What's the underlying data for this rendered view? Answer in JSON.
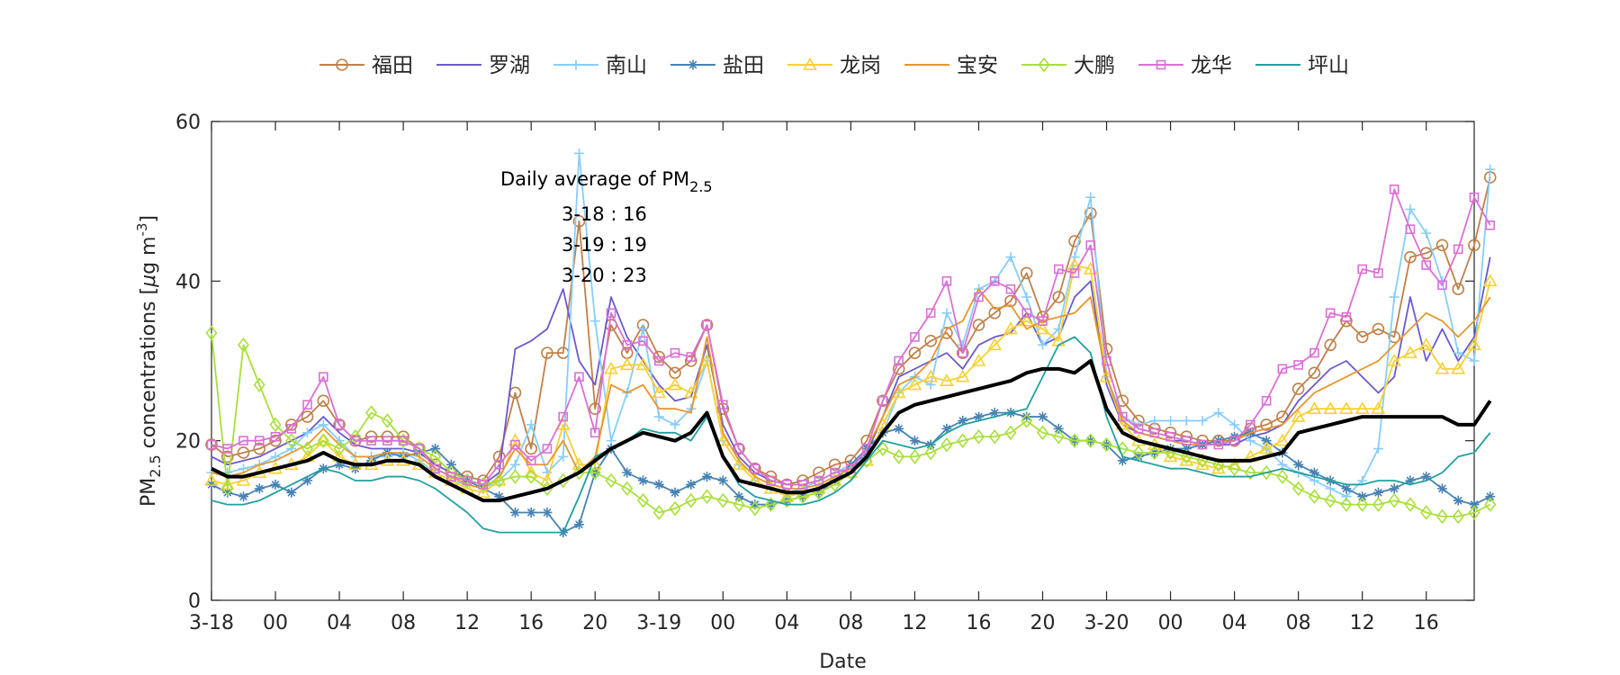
{
  "chart_data": {
    "type": "line",
    "title": "",
    "xlabel": "Date",
    "ylabel": "PM",
    "ylabel_sub": "2.5",
    "ylabel_tail": " concentrations [",
    "ylabel_mu": "μ",
    "ylabel_unit": "g m",
    "ylabel_sup": "-3",
    "ylabel_close": "]",
    "ylim": [
      0,
      60
    ],
    "yticks": [
      0,
      20,
      40,
      60
    ],
    "xlim": [
      0,
      79
    ],
    "xticks": [
      {
        "h": 0,
        "label": "3-18"
      },
      {
        "h": 4,
        "label": "00"
      },
      {
        "h": 8,
        "label": "04"
      },
      {
        "h": 12,
        "label": "08"
      },
      {
        "h": 16,
        "label": "12"
      },
      {
        "h": 20,
        "label": "16"
      },
      {
        "h": 24,
        "label": "20"
      },
      {
        "h": 28,
        "label": "3-19"
      },
      {
        "h": 32,
        "label": "00"
      },
      {
        "h": 36,
        "label": "04"
      },
      {
        "h": 40,
        "label": "08"
      },
      {
        "h": 44,
        "label": "12"
      },
      {
        "h": 48,
        "label": "16"
      },
      {
        "h": 52,
        "label": "20"
      },
      {
        "h": 56,
        "label": "3-20"
      },
      {
        "h": 60,
        "label": "00"
      },
      {
        "h": 64,
        "label": "04"
      },
      {
        "h": 68,
        "label": "08"
      },
      {
        "h": 72,
        "label": "12"
      },
      {
        "h": 76,
        "label": "16"
      }
    ],
    "legend_position": "top",
    "annotation": {
      "title": "Daily average of PM",
      "title_sub": "2.5",
      "lines": [
        "3-18 : 16",
        "3-19 : 19",
        "3-20 : 23"
      ]
    },
    "series": [
      {
        "name": "福田",
        "color": "#C0804A",
        "marker": "circle",
        "values": [
          19.5,
          18,
          18.5,
          19,
          20,
          22,
          23,
          25,
          22,
          20,
          20.5,
          20.5,
          20.5,
          19,
          17,
          16,
          15.5,
          15,
          18,
          26,
          19,
          31,
          31,
          47.5,
          24,
          34.5,
          31,
          34.5,
          30.5,
          28.5,
          30,
          34.5,
          24,
          19,
          16.5,
          15.5,
          14.5,
          15,
          16,
          17,
          17.5,
          20,
          25,
          29,
          31,
          32.5,
          33.5,
          31,
          34.5,
          36,
          37.5,
          41,
          35.5,
          38,
          45,
          48.5,
          31.5,
          25,
          22.5,
          21.5,
          21,
          20.5,
          20,
          20,
          20,
          21.5,
          22,
          23,
          26.5,
          28.5,
          32,
          35,
          33,
          34,
          33,
          43,
          43.5,
          44.5,
          39,
          44.5,
          53
        ]
      },
      {
        "name": "罗湖",
        "color": "#6A5ACD",
        "marker": "none",
        "values": [
          18,
          17,
          17.5,
          18,
          19,
          20,
          21,
          23,
          21,
          19.5,
          19,
          19,
          19,
          18.5,
          17,
          16,
          15,
          14.5,
          16,
          31.5,
          32.5,
          34,
          39,
          30,
          27,
          38,
          33,
          30,
          27,
          25,
          25.5,
          32,
          22,
          18,
          16,
          15,
          14.5,
          14.5,
          15,
          16,
          16.5,
          18.5,
          23,
          28,
          29,
          30,
          31,
          29,
          32,
          33,
          33.5,
          36,
          32,
          33,
          38,
          40,
          27,
          22,
          21,
          20.5,
          20,
          20,
          19.5,
          19.5,
          19.5,
          20.5,
          21,
          22,
          25,
          27,
          29,
          30,
          28,
          26,
          28,
          38,
          30,
          34,
          30,
          33,
          43
        ]
      },
      {
        "name": "南山",
        "color": "#87CEFA",
        "marker": "plus",
        "values": [
          16,
          16,
          16.5,
          17,
          18,
          19,
          21,
          22,
          20,
          18,
          18,
          18,
          18.5,
          17.5,
          16,
          15,
          14.5,
          14,
          15,
          17,
          22,
          16,
          18,
          56,
          35,
          20,
          26,
          34,
          23,
          22,
          24,
          30,
          20,
          17,
          15,
          14,
          13.5,
          14,
          15,
          16,
          17,
          18,
          21,
          26,
          28,
          27,
          36,
          32,
          39,
          40,
          43,
          38,
          32,
          34,
          43,
          50.5,
          28,
          23,
          22,
          22.5,
          22.5,
          22.5,
          22.5,
          23.5,
          22,
          20,
          19,
          17,
          16,
          15,
          14,
          13,
          15,
          19,
          38,
          49,
          46,
          40,
          31,
          30,
          54
        ]
      },
      {
        "name": "盐田",
        "color": "#4682B4",
        "marker": "star",
        "values": [
          14.5,
          13.5,
          13,
          14,
          14.5,
          13.5,
          15,
          16.5,
          17,
          16.5,
          17.5,
          18.5,
          18,
          18.5,
          19,
          17,
          15,
          14,
          13,
          11,
          11,
          11,
          8.5,
          9.5,
          16,
          19,
          16,
          15,
          14.5,
          13.5,
          14.5,
          15.5,
          15,
          13,
          12,
          12,
          12.5,
          13,
          13.5,
          15,
          17,
          19,
          21,
          21.5,
          20,
          19.5,
          21.5,
          22.5,
          23,
          23.5,
          23.5,
          23,
          23,
          21.5,
          20,
          20,
          19.5,
          17.5,
          18,
          18.5,
          19,
          19,
          19.5,
          20,
          20.5,
          21,
          20,
          18.5,
          17,
          16,
          15,
          14,
          13,
          13.5,
          14,
          15,
          15.5,
          14,
          12.5,
          12,
          13
        ]
      },
      {
        "name": "龙岗",
        "color": "#F8D030",
        "marker": "triangle",
        "values": [
          15,
          14.5,
          15,
          16,
          16.5,
          17,
          18,
          20,
          18,
          17,
          17,
          17.5,
          17.5,
          17,
          16,
          15,
          14,
          13.5,
          15,
          20,
          16,
          15,
          22,
          17,
          17,
          29,
          29.5,
          29.5,
          26,
          27,
          26,
          30,
          20,
          17,
          15,
          14,
          13,
          13.5,
          14,
          15,
          16,
          17.5,
          22,
          26,
          27,
          28,
          27.5,
          28,
          30,
          32,
          34,
          35,
          34,
          32.5,
          42,
          41.5,
          28,
          22,
          20,
          19.5,
          18,
          17.5,
          17,
          16.5,
          17,
          18,
          19,
          20,
          23,
          24,
          24,
          24,
          24,
          24,
          30,
          31,
          32,
          29,
          29,
          32,
          40
        ]
      },
      {
        "name": "宝安",
        "color": "#E8962E",
        "marker": "none",
        "values": [
          16,
          15.5,
          16,
          17,
          17.5,
          18.5,
          19.5,
          21.5,
          19.5,
          18,
          18,
          18.5,
          18.5,
          18,
          16.5,
          15.5,
          14.5,
          14,
          15.5,
          19,
          17,
          17,
          20,
          16,
          18,
          27,
          26,
          27,
          24,
          24,
          23.5,
          33,
          21,
          17.5,
          15.5,
          14.5,
          14,
          14,
          14.5,
          15.5,
          16.5,
          19,
          23,
          27,
          28,
          30,
          34,
          35,
          39,
          36.5,
          37,
          34,
          35,
          35.5,
          36,
          38,
          28,
          22.5,
          21,
          20.5,
          20,
          19.5,
          19.5,
          19.5,
          20,
          21,
          21.5,
          22,
          24,
          26,
          27,
          28,
          29,
          30,
          32,
          34,
          36,
          35,
          33,
          35,
          38
        ]
      },
      {
        "name": "大鹏",
        "color": "#A8E03A",
        "marker": "diamond",
        "values": [
          33.5,
          14,
          32,
          27,
          22,
          20,
          19,
          20,
          19,
          20.5,
          23.5,
          22.5,
          20,
          19,
          18,
          16,
          15,
          14.5,
          15,
          15.5,
          15.5,
          14,
          15,
          16,
          16,
          15,
          14,
          12.5,
          11,
          11.5,
          12.5,
          13,
          12.5,
          12,
          11.5,
          12,
          12.5,
          13,
          13.5,
          14.5,
          16,
          17.5,
          19,
          18,
          18,
          18.5,
          19.5,
          20,
          20.5,
          20.5,
          21,
          22.5,
          21,
          20.5,
          20,
          20,
          19.5,
          19,
          18.5,
          18.5,
          18.5,
          18,
          17.5,
          17,
          16.5,
          16,
          16,
          15.5,
          14,
          13,
          12.5,
          12,
          12,
          12,
          12.5,
          12,
          11,
          10.5,
          10.5,
          11,
          12
        ]
      },
      {
        "name": "龙华",
        "color": "#DA70D6",
        "marker": "square",
        "values": [
          19.5,
          19,
          20,
          20,
          20.5,
          21.5,
          24.5,
          28,
          22,
          20,
          20,
          20,
          20,
          19,
          16.5,
          15.5,
          15,
          14.5,
          17,
          19.5,
          17.5,
          19,
          23,
          28,
          21,
          36,
          32,
          32.5,
          30,
          31,
          30.5,
          34.5,
          24.5,
          19,
          16.5,
          15,
          14.5,
          14.5,
          15,
          16,
          16.5,
          19,
          25,
          30,
          33,
          36,
          40,
          31,
          38,
          40,
          39,
          36,
          35,
          41.5,
          41,
          44.5,
          30,
          23,
          21.5,
          21,
          20.5,
          20,
          19.5,
          19.5,
          20,
          22,
          25,
          29,
          29.5,
          31,
          36,
          35.5,
          41.5,
          41,
          51.5,
          46.5,
          42,
          39.5,
          44,
          50.5,
          47
        ]
      },
      {
        "name": "坪山",
        "color": "#20A0A0",
        "marker": "none",
        "values": [
          12.5,
          12,
          12,
          12.5,
          13.5,
          14.5,
          15.5,
          16.5,
          16,
          15,
          15,
          15.5,
          15.5,
          15,
          14,
          12.5,
          11,
          9,
          8.5,
          8.5,
          8.5,
          8.5,
          8.5,
          13,
          18,
          19,
          20,
          21.5,
          21,
          21,
          20,
          23,
          18,
          14.5,
          13,
          12.5,
          12,
          12,
          12.5,
          13.5,
          15,
          17.5,
          20,
          19.5,
          19,
          19.5,
          21,
          22,
          22.5,
          23,
          23.5,
          24,
          28,
          32,
          33,
          31,
          23,
          18,
          17.5,
          17,
          16.5,
          16.5,
          16,
          15.5,
          15.5,
          15.5,
          16,
          16.5,
          16,
          15.5,
          15,
          14.5,
          14.5,
          15,
          15,
          14.5,
          15,
          16,
          18,
          18.5,
          21
        ]
      },
      {
        "name": "",
        "color": "#000000",
        "marker": "none",
        "thick": true,
        "values": [
          16.5,
          15.5,
          15.5,
          16,
          16.5,
          17,
          17.5,
          18.5,
          17.5,
          17,
          17,
          17.5,
          17.5,
          17,
          15.5,
          14.5,
          13.5,
          12.5,
          12.5,
          13,
          13.5,
          14,
          15,
          16,
          17.5,
          19,
          20,
          21,
          20.5,
          20,
          21,
          23.5,
          18,
          15,
          14.5,
          14,
          13.5,
          13.5,
          14,
          15,
          16,
          18,
          21,
          23.5,
          24.5,
          25,
          25.5,
          26,
          26.5,
          27,
          27.5,
          28.5,
          29,
          29,
          28.5,
          30,
          24,
          21,
          20,
          19.5,
          19,
          18.5,
          18,
          17.5,
          17.5,
          17.5,
          18,
          18.5,
          21,
          21.5,
          22,
          22.5,
          23,
          23,
          23,
          23,
          23,
          23,
          22,
          22,
          25
        ]
      }
    ]
  }
}
